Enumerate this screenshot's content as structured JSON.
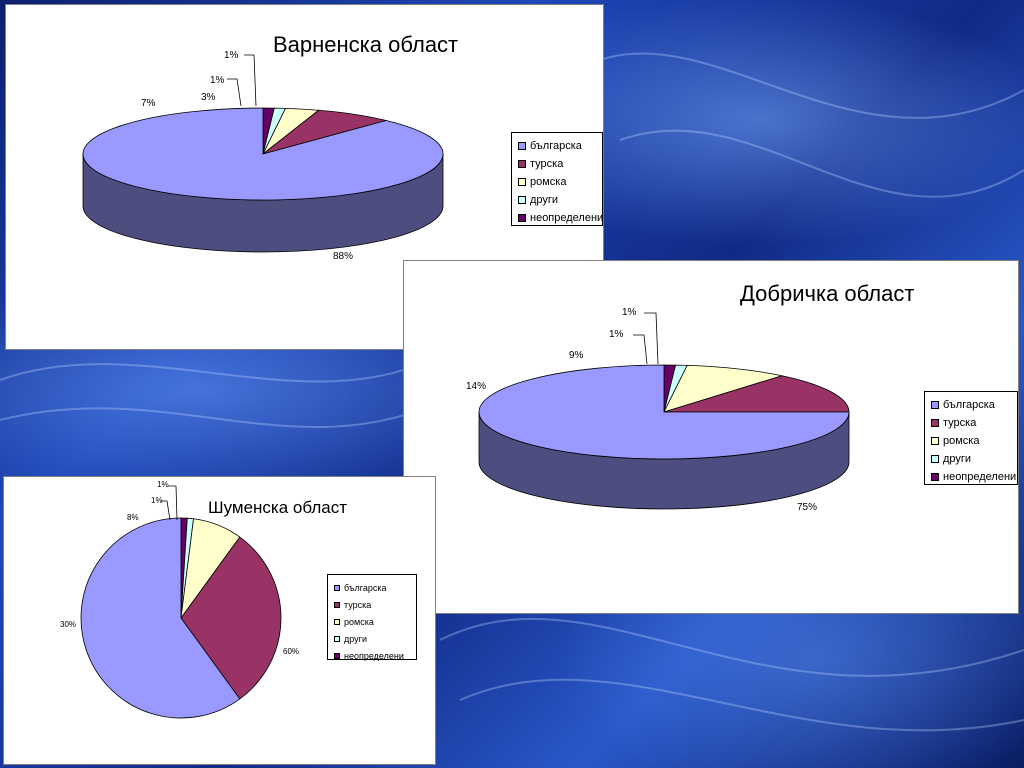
{
  "colors": [
    "#9999ff",
    "#993366",
    "#ffffcc",
    "#ccffff",
    "#660066"
  ],
  "chart_data": [
    {
      "type": "pie",
      "style": "3d",
      "title": "Варненска област",
      "categories": [
        "българска",
        "турска",
        "ромска",
        "други",
        "неопределени"
      ],
      "values": [
        88,
        7,
        3,
        1,
        1
      ],
      "labels": [
        "88%",
        "7%",
        "3%",
        "1%",
        "1%"
      ],
      "legend": "right"
    },
    {
      "type": "pie",
      "style": "3d",
      "title": "Добричка област",
      "categories": [
        "българска",
        "турска",
        "ромска",
        "други",
        "неопределени"
      ],
      "values": [
        75,
        14,
        9,
        1,
        1
      ],
      "labels": [
        "75%",
        "14%",
        "9%",
        "1%",
        "1%"
      ],
      "legend": "right"
    },
    {
      "type": "pie",
      "style": "2d",
      "title": "Шуменска област",
      "categories": [
        "българска",
        "турска",
        "ромска",
        "други",
        "неопределени"
      ],
      "values": [
        60,
        30,
        8,
        1,
        1
      ],
      "labels": [
        "60%",
        "30%",
        "8%",
        "1%",
        "1%"
      ],
      "legend": "right"
    }
  ]
}
